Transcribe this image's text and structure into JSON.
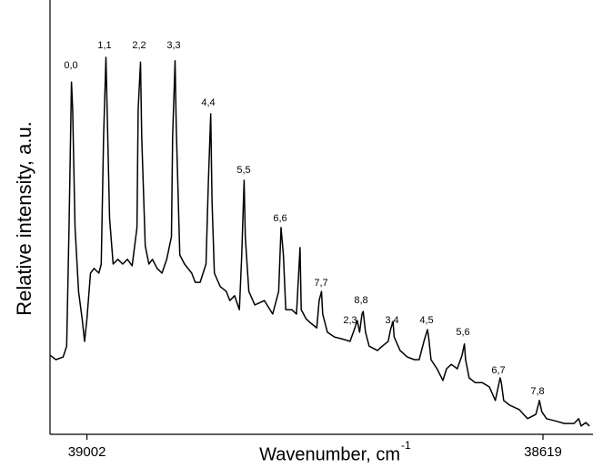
{
  "chart_data": {
    "type": "line",
    "x_label": "Wavenumber, cm",
    "x_label_superscript": "-1",
    "y_label": "Relative intensity, a.u.",
    "xlim": [
      39033,
      38577
    ],
    "xticks": [
      39002,
      38619
    ],
    "ylim": [
      0,
      100
    ],
    "series": [
      {
        "color": "#000000",
        "x": [
          39033,
          39028,
          39022,
          39019,
          39017,
          39015,
          39014,
          39012,
          39009,
          39006,
          39004,
          39002,
          38999,
          38996,
          38992,
          38990,
          38988,
          38986,
          38985,
          38983,
          38980,
          38976,
          38972,
          38968,
          38964,
          38960,
          38959,
          38957,
          38956,
          38953,
          38950,
          38947,
          38943,
          38939,
          38935,
          38931,
          38930,
          38928,
          38927,
          38924,
          38920,
          38914,
          38911,
          38907,
          38902,
          38900,
          38898,
          38897,
          38895,
          38890,
          38885,
          38882,
          38878,
          38874,
          38872,
          38870,
          38869,
          38866,
          38861,
          38853,
          38846,
          38841,
          38839,
          38837,
          38835,
          38830,
          38826,
          38823,
          38822,
          38818,
          38814,
          38809,
          38807,
          38805,
          38804,
          38800,
          38794,
          38788,
          38781,
          38777,
          38775,
          38773,
          38771,
          38770,
          38768,
          38765,
          38758,
          38754,
          38749,
          38747,
          38745,
          38744,
          38739,
          38733,
          38727,
          38723,
          38719,
          38716,
          38715,
          38713,
          38708,
          38703,
          38700,
          38696,
          38691,
          38687,
          38685,
          38684,
          38681,
          38676,
          38670,
          38664,
          38659,
          38655,
          38654,
          38652,
          38647,
          38639,
          38632,
          38625,
          38623,
          38622,
          38620,
          38616,
          38609,
          38601,
          38593,
          38589,
          38587,
          38583,
          38580
        ],
        "values": [
          18.2,
          17.2,
          17.8,
          20.3,
          47.6,
          81.1,
          74.8,
          47.6,
          32.9,
          26.6,
          21.4,
          26.6,
          37.1,
          38.2,
          37.1,
          39.2,
          68.6,
          86.8,
          74.8,
          49.7,
          39.2,
          40.3,
          39.2,
          40.3,
          38.8,
          47.6,
          74.8,
          85.7,
          68.6,
          43.4,
          39.2,
          40.3,
          38.2,
          37.1,
          40.3,
          45.5,
          68.6,
          86.0,
          70.6,
          41.3,
          39.2,
          37.1,
          35.0,
          35.0,
          39.2,
          58.1,
          73.8,
          53.9,
          37.1,
          34.0,
          32.9,
          30.8,
          31.9,
          28.7,
          41.3,
          58.5,
          45.5,
          32.9,
          29.8,
          30.8,
          27.7,
          32.9,
          47.6,
          41.3,
          28.7,
          28.7,
          27.7,
          43.0,
          28.7,
          26.6,
          25.6,
          24.5,
          30.8,
          32.9,
          27.7,
          23.5,
          22.4,
          22.0,
          21.4,
          24.5,
          26.2,
          23.5,
          27.7,
          28.3,
          23.5,
          20.3,
          19.3,
          20.3,
          21.4,
          24.1,
          26.0,
          22.4,
          19.3,
          17.8,
          17.2,
          17.2,
          21.4,
          24.1,
          22.4,
          17.2,
          15.1,
          12.4,
          15.1,
          16.1,
          15.1,
          18.2,
          20.8,
          17.2,
          13.0,
          11.9,
          11.9,
          10.9,
          7.8,
          13.0,
          11.9,
          7.8,
          6.7,
          5.7,
          3.6,
          4.6,
          6.7,
          7.8,
          5.2,
          3.6,
          3.1,
          2.5,
          2.5,
          3.6,
          1.9,
          2.7,
          1.9
        ]
      }
    ],
    "annotations": [
      "0,0",
      "1,1",
      "2,2",
      "3,3",
      "4,4",
      "5,5",
      "6,6",
      "7,7",
      "2,3",
      "8,8",
      "3,4",
      "4,5",
      "5,6",
      "6,7",
      "7,8"
    ]
  }
}
